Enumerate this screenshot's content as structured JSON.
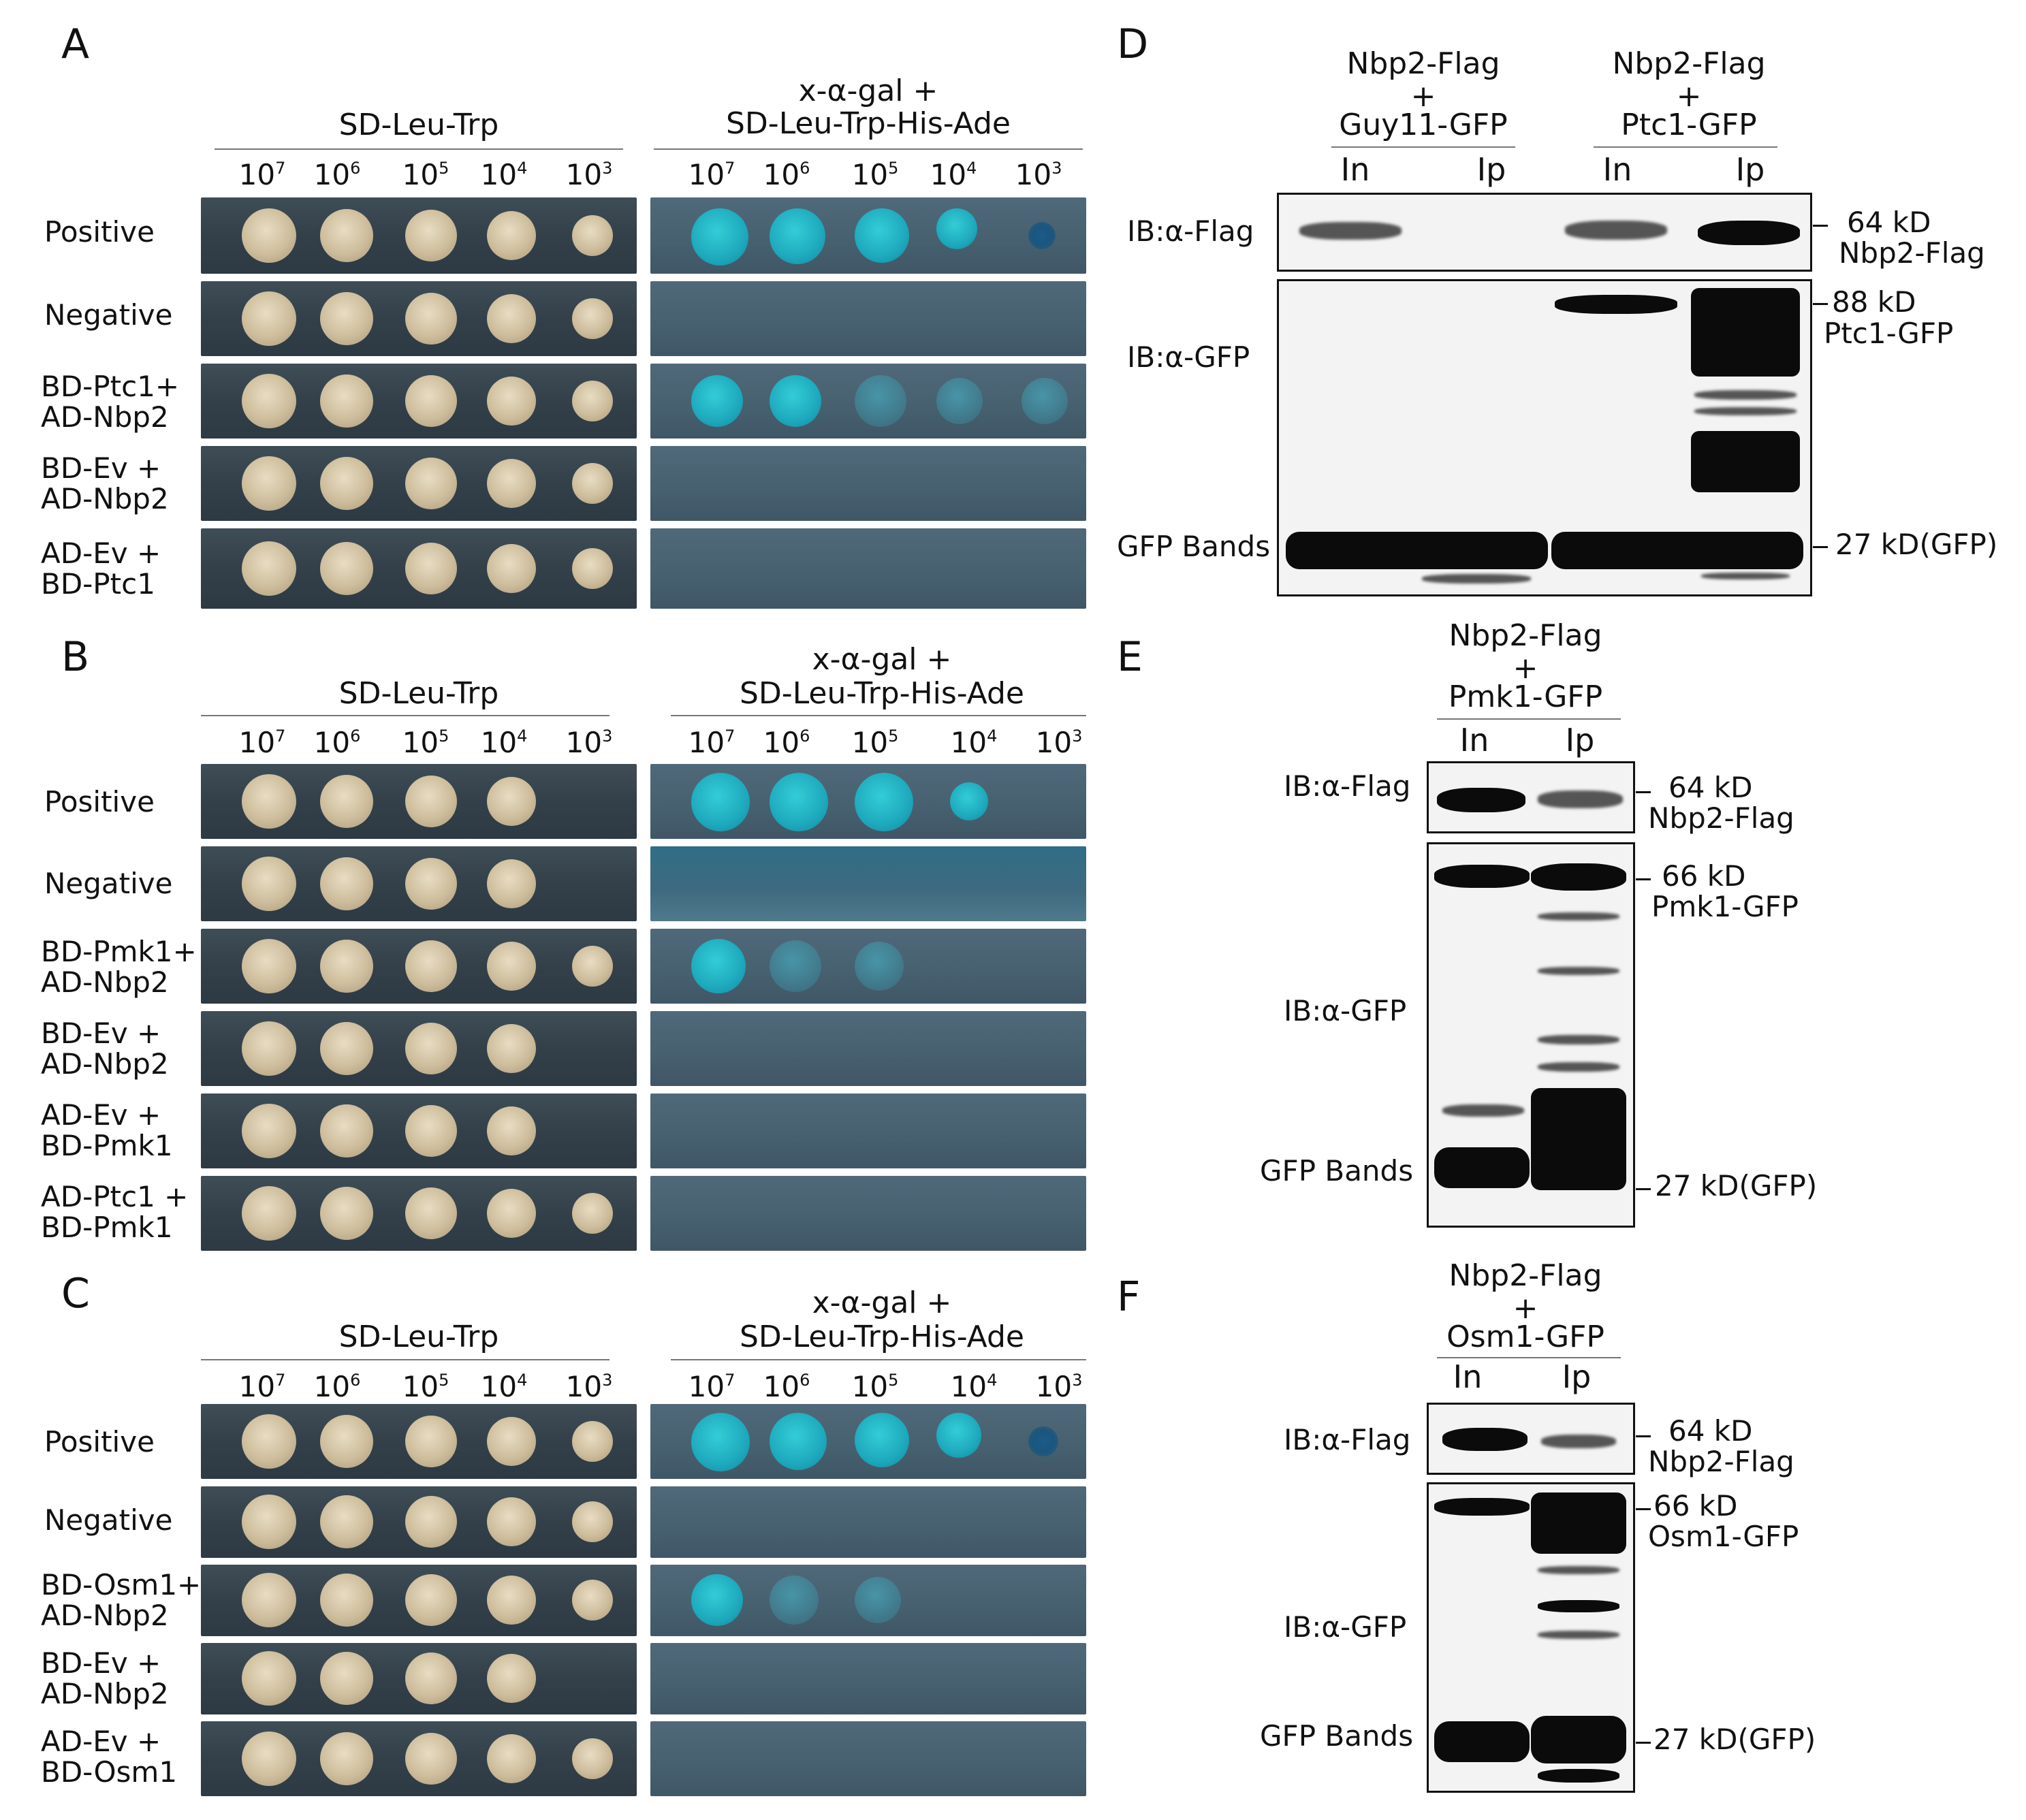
{
  "panels": {
    "A": {
      "letter": "A",
      "sd_header": "SD-Leu-Trp",
      "xg_header_line1": "x-α-gal +",
      "xg_header_line2": "SD-Leu-Trp-His-Ade",
      "rows": [
        {
          "line1": "Positive",
          "line2": ""
        },
        {
          "line1": "Negative",
          "line2": ""
        },
        {
          "line1": "BD-Ptc1+",
          "line2": "AD-Nbp2"
        },
        {
          "line1": "BD-Ev +",
          "line2": "AD-Nbp2"
        },
        {
          "line1": "AD-Ev +",
          "line2": "BD-Ptc1"
        }
      ]
    },
    "B": {
      "letter": "B",
      "sd_header": "SD-Leu-Trp",
      "xg_header_line1": "x-α-gal +",
      "xg_header_line2": "SD-Leu-Trp-His-Ade",
      "rows": [
        {
          "line1": "Positive",
          "line2": ""
        },
        {
          "line1": "Negative",
          "line2": ""
        },
        {
          "line1": "BD-Pmk1+",
          "line2": "AD-Nbp2"
        },
        {
          "line1": "BD-Ev +",
          "line2": "AD-Nbp2"
        },
        {
          "line1": "AD-Ev +",
          "line2": "BD-Pmk1"
        },
        {
          "line1": "AD-Ptc1 +",
          "line2": "BD-Pmk1"
        }
      ]
    },
    "C": {
      "letter": "C",
      "sd_header": "SD-Leu-Trp",
      "xg_header_line1": "x-α-gal +",
      "xg_header_line2": "SD-Leu-Trp-His-Ade",
      "rows": [
        {
          "line1": "Positive",
          "line2": ""
        },
        {
          "line1": "Negative",
          "line2": ""
        },
        {
          "line1": "BD-Osm1+",
          "line2": "AD-Nbp2"
        },
        {
          "line1": "BD-Ev +",
          "line2": "AD-Nbp2"
        },
        {
          "line1": "AD-Ev +",
          "line2": "BD-Osm1"
        }
      ]
    },
    "D": {
      "letter": "D",
      "group1": [
        "Nbp2-Flag",
        "+",
        "Guy11-GFP"
      ],
      "group2": [
        "Nbp2-Flag",
        "+",
        "Ptc1-GFP"
      ],
      "lanes": [
        "In",
        "Ip",
        "In",
        "Ip"
      ],
      "ib_flag": "IB:α-Flag",
      "ib_gfp": "IB:α-GFP",
      "gfp_bands": "GFP Bands",
      "marker_flag": [
        "64 kD",
        "Nbp2-Flag"
      ],
      "marker_gfp_top": [
        "88 kD",
        "Ptc1-GFP"
      ],
      "marker_gfp_bottom": "27 kD(GFP)"
    },
    "E": {
      "letter": "E",
      "group": [
        "Nbp2-Flag",
        "+",
        "Pmk1-GFP"
      ],
      "lanes": [
        "In",
        "Ip"
      ],
      "ib_flag": "IB:α-Flag",
      "ib_gfp": "IB:α-GFP",
      "gfp_bands": "GFP Bands",
      "marker_flag": [
        "64 kD",
        "Nbp2-Flag"
      ],
      "marker_gfp_top": [
        "66 kD",
        "Pmk1-GFP"
      ],
      "marker_gfp_bottom": "27 kD(GFP)"
    },
    "F": {
      "letter": "F",
      "group": [
        "Nbp2-Flag",
        "+",
        "Osm1-GFP"
      ],
      "lanes": [
        "In",
        "Ip"
      ],
      "ib_flag": "IB:α-Flag",
      "ib_gfp": "IB:α-GFP",
      "gfp_bands": "GFP Bands",
      "marker_flag": [
        "64 kD",
        "Nbp2-Flag"
      ],
      "marker_gfp_top": [
        "66 kD",
        "Osm1-GFP"
      ],
      "marker_gfp_bottom": "27 kD(GFP)"
    }
  },
  "dilutions": {
    "base": "10",
    "exponents": [
      "7",
      "6",
      "5",
      "4",
      "3"
    ]
  },
  "colors": {
    "sd_plate": "#3a4752",
    "xgal_plate": "#4b6475",
    "yeast_spot": "#d8caa8",
    "blue_colony": "#22b4c6",
    "band": "#0b0b0b"
  }
}
